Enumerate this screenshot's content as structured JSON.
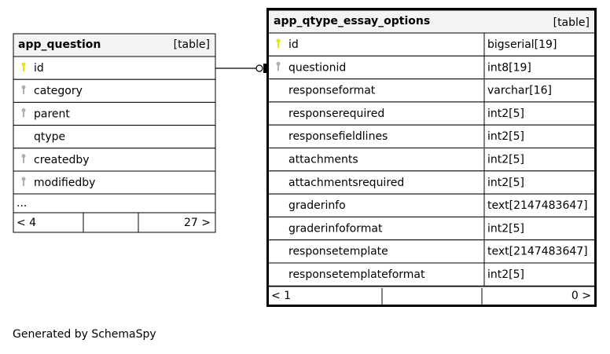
{
  "tables": [
    {
      "name": "app_question",
      "kind": "[table]",
      "columns": [
        {
          "name": "id",
          "key": "primary"
        },
        {
          "name": "category",
          "key": "foreign"
        },
        {
          "name": "parent",
          "key": "foreign"
        },
        {
          "name": "qtype",
          "key": "none"
        },
        {
          "name": "createdby",
          "key": "foreign"
        },
        {
          "name": "modifiedby",
          "key": "foreign"
        }
      ],
      "ellipsis": "...",
      "parents_label": "< 4",
      "children_label": "27 >"
    },
    {
      "name": "app_qtype_essay_options",
      "kind": "[table]",
      "columns": [
        {
          "name": "id",
          "type": "bigserial[19]",
          "key": "primary"
        },
        {
          "name": "questionid",
          "type": "int8[19]",
          "key": "foreign"
        },
        {
          "name": "responseformat",
          "type": "varchar[16]",
          "key": "none"
        },
        {
          "name": "responserequired",
          "type": "int2[5]",
          "key": "none"
        },
        {
          "name": "responsefieldlines",
          "type": "int2[5]",
          "key": "none"
        },
        {
          "name": "attachments",
          "type": "int2[5]",
          "key": "none"
        },
        {
          "name": "attachmentsrequired",
          "type": "int2[5]",
          "key": "none"
        },
        {
          "name": "graderinfo",
          "type": "text[2147483647]",
          "key": "none"
        },
        {
          "name": "graderinfoformat",
          "type": "int2[5]",
          "key": "none"
        },
        {
          "name": "responsetemplate",
          "type": "text[2147483647]",
          "key": "none"
        },
        {
          "name": "responsetemplateformat",
          "type": "int2[5]",
          "key": "none"
        }
      ],
      "parents_label": "< 1",
      "children_label": "0 >"
    }
  ],
  "relationships": [
    {
      "from": "app_qtype_essay_options.questionid",
      "to": "app_question.id",
      "cardinality": "zero-or-one to one"
    }
  ],
  "colors": {
    "primary_key": "#e6e600",
    "foreign_key": "#b0b0b0",
    "header_bg": "#f4f4f4"
  },
  "footer": "Generated by SchemaSpy"
}
